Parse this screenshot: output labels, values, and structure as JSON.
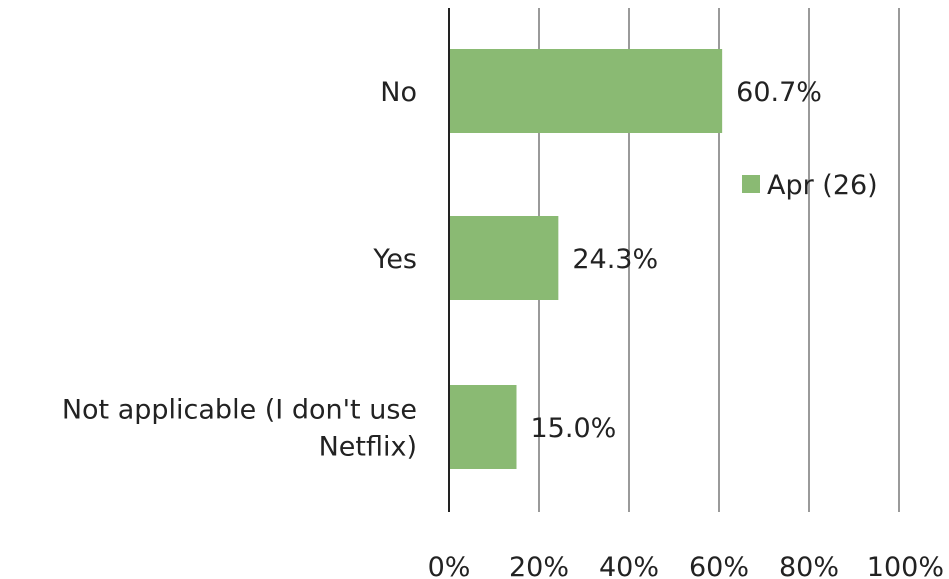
{
  "chart_data": {
    "type": "bar",
    "orientation": "horizontal",
    "categories": [
      "No",
      "Yes",
      "Not applicable (I don't use Netflix)"
    ],
    "category_lines": [
      [
        "No"
      ],
      [
        "Yes"
      ],
      [
        "Not applicable (I don't use",
        "Netflix)"
      ]
    ],
    "series": [
      {
        "name": "Apr (26)",
        "values": [
          60.7,
          24.3,
          15.0
        ],
        "labels": [
          "60.7%",
          "24.3%",
          "15.0%"
        ],
        "color": "#8aba73"
      }
    ],
    "xlim": [
      0,
      100
    ],
    "xticks": [
      0,
      20,
      40,
      60,
      80,
      100
    ],
    "xtick_labels": [
      "0%",
      "20%",
      "40%",
      "60%",
      "80%",
      "100%"
    ],
    "grid": true,
    "legend_position": "right"
  },
  "colors": {
    "bar": "#8aba73",
    "gridline": "#9a9a9a",
    "axis": "#222222",
    "text": "#222222"
  }
}
